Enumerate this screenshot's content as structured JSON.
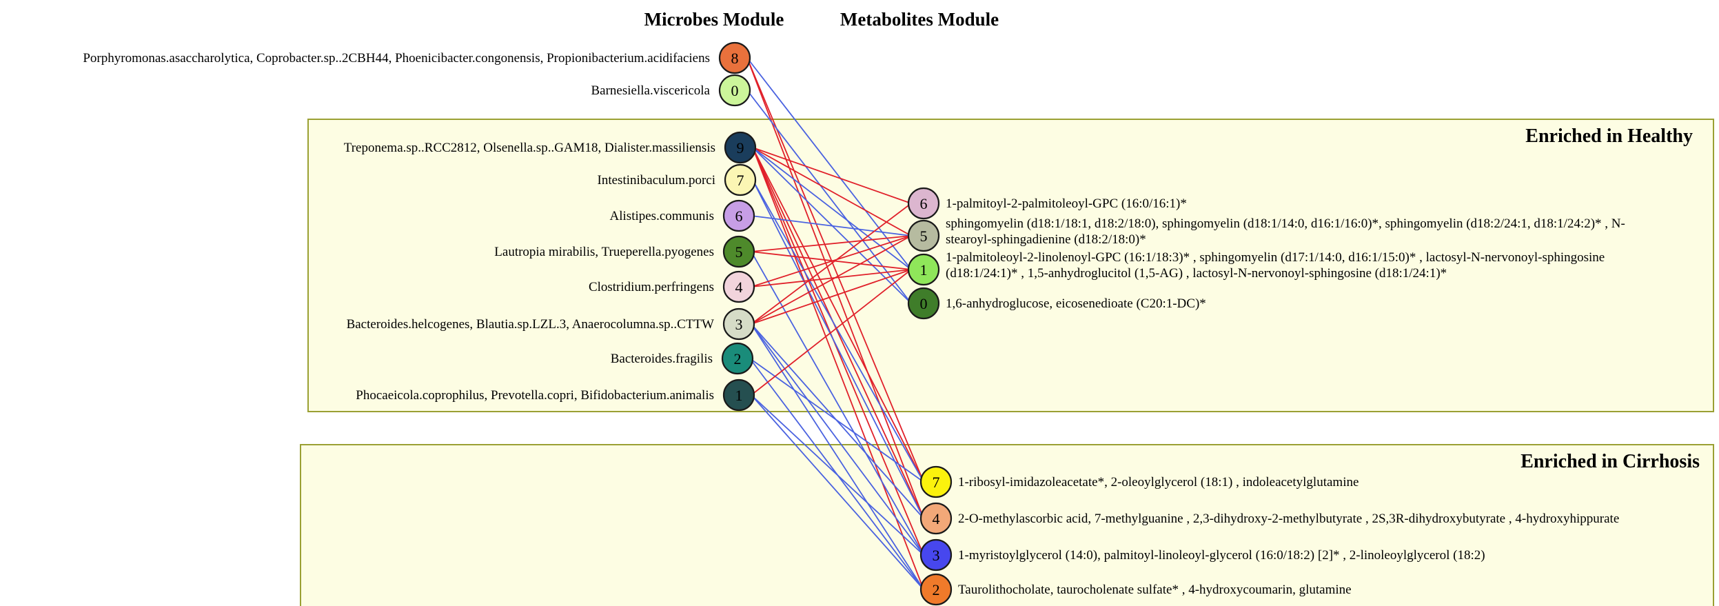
{
  "headers": {
    "microbes": "Microbes Module",
    "metabolites": "Metabolites Module"
  },
  "groups": {
    "healthy": "Enriched in Healthy",
    "cirrhosis": "Enriched in Cirrhosis"
  },
  "microbes": [
    {
      "id": "8",
      "color": "#e9713c",
      "label": "Porphyromonas.asaccharolytica,  Coprobacter.sp..2CBH44, Phoenicibacter.congonensis,  Propionibacterium.acidifaciens"
    },
    {
      "id": "0",
      "color": "#ccf59a",
      "label": "Barnesiella.viscericola"
    },
    {
      "id": "9",
      "color": "#1a3d5c",
      "label": "Treponema.sp..RCC2812,  Olsenella.sp..GAM18,  Dialister.massiliensis"
    },
    {
      "id": "7",
      "color": "#fbf6b4",
      "label": "Intestinibaculum.porci"
    },
    {
      "id": "6",
      "color": "#c79ee6",
      "label": "Alistipes.communis"
    },
    {
      "id": "5",
      "color": "#4e8a2b",
      "label": "Lautropia mirabilis,  Trueperella.pyogenes"
    },
    {
      "id": "4",
      "color": "#f2d4dc",
      "label": "Clostridium.perfringens"
    },
    {
      "id": "3",
      "color": "#d6dcc7",
      "label": "Bacteroides.helcogenes,  Blautia.sp.LZL.3,  Anaerocolumna.sp..CTTW"
    },
    {
      "id": "2",
      "color": "#1a8c7a",
      "label": "Bacteroides.fragilis"
    },
    {
      "id": "1",
      "color": "#254f50",
      "label": "Phocaeicola.coprophilus, Prevotella.copri,  Bifidobacterium.animalis"
    }
  ],
  "metabolites": [
    {
      "id": "6",
      "color": "#dcb6cf",
      "lines": [
        "1-palmitoyl-2-palmitoleoyl-GPC  (16:0/16:1)*"
      ]
    },
    {
      "id": "5",
      "color": "#b6bba0",
      "lines": [
        "sphingomyelin  (d18:1/18:1, d18:2/18:0), sphingomyelin  (d18:1/14:0, d16:1/16:0)*, sphingomyelin  (d18:2/24:1, d18:1/24:2)* ,  N-",
        "stearoyl-sphingadienine  (d18:2/18:0)*"
      ]
    },
    {
      "id": "1",
      "color": "#8fe65a",
      "lines": [
        "1-palmitoleoyl-2-linolenoyl-GPC  (16:1/18:3)* ,  sphingomyelin  (d17:1/14:0,  d16:1/15:0)* ,  lactosyl-N-nervonoyl-sphingosine",
        "(d18:1/24:1)* ,  1,5-anhydroglucitol  (1,5-AG) ,  lactosyl-N-nervonoyl-sphingosine  (d18:1/24:1)*"
      ]
    },
    {
      "id": "0",
      "color": "#3f7d2a",
      "lines": [
        "1,6-anhydroglucose,  eicosenedioate (C20:1-DC)*"
      ]
    },
    {
      "id": "7",
      "color": "#fbf20d",
      "lines": [
        "1-ribosyl-imidazoleacetate*,  2-oleoylglycerol  (18:1) ,  indoleacetylglutamine"
      ]
    },
    {
      "id": "4",
      "color": "#f2a878",
      "lines": [
        "2-O-methylascorbic  acid,  7-methylguanine  , 2,3-dihydroxy-2-methylbutyrate  ,  2S,3R-dihydroxybutyrate  ,  4-hydroxyhippurate"
      ]
    },
    {
      "id": "3",
      "color": "#4747ee",
      "lines": [
        "1-myristoylglycerol  (14:0), palmitoyl-linoleoyl-glycerol  (16:0/18:2) [2]* ,  2-linoleoylglycerol  (18:2)"
      ]
    },
    {
      "id": "2",
      "color": "#f07a2a",
      "lines": [
        "Taurolithocholate,  taurocholenate sulfate* ,  4-hydroxycoumarin,  glutamine"
      ]
    }
  ],
  "edges": [
    {
      "from": "8",
      "to": "7",
      "color": "#e0202a"
    },
    {
      "from": "8",
      "to": "4",
      "color": "#e0202a"
    },
    {
      "from": "8",
      "to": "1",
      "color": "#4a62e0"
    },
    {
      "from": "0",
      "to": "0",
      "color": "#4a62e0"
    },
    {
      "from": "9",
      "to": "6",
      "color": "#e0202a"
    },
    {
      "from": "9",
      "to": "5",
      "color": "#e0202a"
    },
    {
      "from": "9",
      "to": "7",
      "color": "#e0202a"
    },
    {
      "from": "9",
      "to": "4",
      "color": "#e0202a"
    },
    {
      "from": "9",
      "to": "3",
      "color": "#e0202a"
    },
    {
      "from": "9",
      "to": "2",
      "color": "#e0202a"
    },
    {
      "from": "9",
      "to": "1",
      "color": "#4a62e0"
    },
    {
      "from": "9",
      "to": "0",
      "color": "#4a62e0"
    },
    {
      "from": "7",
      "to": "7",
      "color": "#4a62e0"
    },
    {
      "from": "7",
      "to": "4",
      "color": "#4a62e0"
    },
    {
      "from": "6",
      "to": "5",
      "color": "#4a62e0"
    },
    {
      "from": "5",
      "to": "5",
      "color": "#e0202a"
    },
    {
      "from": "5",
      "to": "1",
      "color": "#e0202a"
    },
    {
      "from": "5",
      "to": "3",
      "color": "#4a62e0"
    },
    {
      "from": "4",
      "to": "5",
      "color": "#e0202a"
    },
    {
      "from": "4",
      "to": "1",
      "color": "#e0202a"
    },
    {
      "from": "3",
      "to": "6",
      "color": "#e0202a"
    },
    {
      "from": "3",
      "to": "5",
      "color": "#e0202a"
    },
    {
      "from": "3",
      "to": "1",
      "color": "#e0202a"
    },
    {
      "from": "3",
      "to": "4",
      "color": "#4a62e0"
    },
    {
      "from": "3",
      "to": "3",
      "color": "#4a62e0"
    },
    {
      "from": "3",
      "to": "2",
      "color": "#4a62e0"
    },
    {
      "from": "2",
      "to": "7",
      "color": "#4a62e0"
    },
    {
      "from": "2",
      "to": "2",
      "color": "#4a62e0"
    },
    {
      "from": "1",
      "to": "1",
      "color": "#e0202a"
    },
    {
      "from": "1",
      "to": "3",
      "color": "#4a62e0"
    },
    {
      "from": "1",
      "to": "2",
      "color": "#4a62e0"
    }
  ]
}
